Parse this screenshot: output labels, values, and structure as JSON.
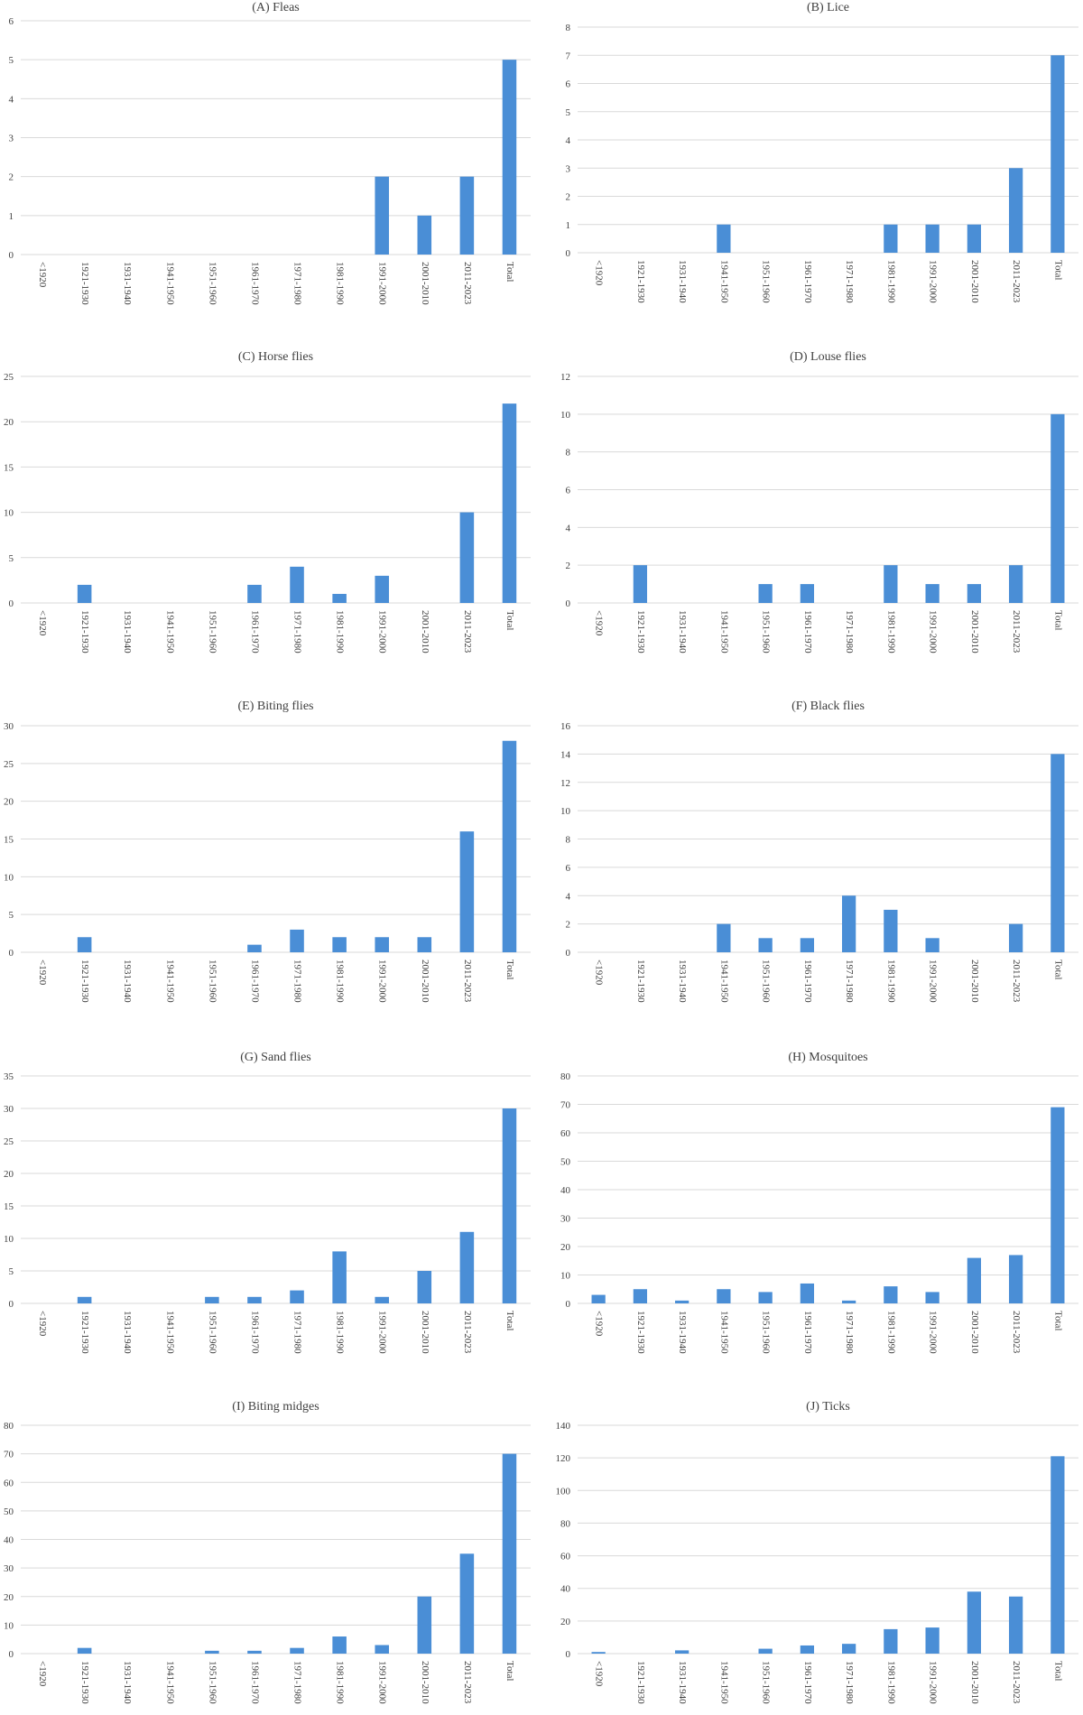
{
  "chart_data": [
    {
      "type": "bar",
      "title": "(A) Fleas",
      "categories": [
        "<1920",
        "1921-1930",
        "1931-1940",
        "1941-1950",
        "1951-1960",
        "1961-1970",
        "1971-1980",
        "1981-1990",
        "1991-2000",
        "2001-2010",
        "2011-2023",
        "Total"
      ],
      "values": [
        0,
        0,
        0,
        0,
        0,
        0,
        0,
        0,
        2,
        1,
        2,
        5
      ],
      "ylim": [
        0,
        6
      ],
      "yticks": [
        "0",
        "1",
        "2",
        "3",
        "4",
        "5",
        "6"
      ],
      "color": "#4a8ed6",
      "grid": true
    },
    {
      "type": "bar",
      "title": "(B) Lice",
      "categories": [
        "<1920",
        "1921-1930",
        "1931-1940",
        "1941-1950",
        "1951-1960",
        "1961-1970",
        "1971-1980",
        "1981-1990",
        "1991-2000",
        "2001-2010",
        "2011-2023",
        "Total"
      ],
      "values": [
        0,
        0,
        0,
        1,
        0,
        0,
        0,
        1,
        1,
        1,
        3,
        7
      ],
      "ylim": [
        0,
        8
      ],
      "yticks": [
        "0",
        "1",
        "2",
        "3",
        "4",
        "5",
        "6",
        "7",
        "8"
      ],
      "color": "#4a8ed6",
      "grid": true
    },
    {
      "type": "bar",
      "title": "(C) Horse flies",
      "categories": [
        "<1920",
        "1921-1930",
        "1931-1940",
        "1941-1950",
        "1951-1960",
        "1961-1970",
        "1971-1980",
        "1981-1990",
        "1991-2000",
        "2001-2010",
        "2011-2023",
        "Total"
      ],
      "values": [
        0,
        2,
        0,
        0,
        0,
        2,
        4,
        1,
        3,
        0,
        10,
        22
      ],
      "ylim": [
        0,
        25
      ],
      "yticks": [
        "0",
        "5",
        "10",
        "15",
        "20",
        "25"
      ],
      "color": "#4a8ed6",
      "grid": true
    },
    {
      "type": "bar",
      "title": "(D) Louse flies",
      "categories": [
        "<1920",
        "1921-1930",
        "1931-1940",
        "1941-1950",
        "1951-1960",
        "1961-1970",
        "1971-1980",
        "1981-1990",
        "1991-2000",
        "2001-2010",
        "2011-2023",
        "Total"
      ],
      "values": [
        0,
        2,
        0,
        0,
        1,
        1,
        0,
        2,
        1,
        1,
        2,
        10
      ],
      "ylim": [
        0,
        12
      ],
      "yticks": [
        "0",
        "2",
        "4",
        "6",
        "8",
        "10",
        "12"
      ],
      "color": "#4a8ed6",
      "grid": true
    },
    {
      "type": "bar",
      "title": "(E) Biting flies",
      "categories": [
        "<1920",
        "1921-1930",
        "1931-1940",
        "1941-1950",
        "1951-1960",
        "1961-1970",
        "1971-1980",
        "1981-1990",
        "1991-2000",
        "2001-2010",
        "2011-2023",
        "Total"
      ],
      "values": [
        0,
        2,
        0,
        0,
        0,
        1,
        3,
        2,
        2,
        2,
        16,
        28
      ],
      "ylim": [
        0,
        30
      ],
      "yticks": [
        "0",
        "5",
        "10",
        "15",
        "20",
        "25",
        "30"
      ],
      "color": "#4a8ed6",
      "grid": true
    },
    {
      "type": "bar",
      "title": "(F) Black flies",
      "categories": [
        "<1920",
        "1921-1930",
        "1931-1940",
        "1941-1950",
        "1951-1960",
        "1961-1970",
        "1971-1980",
        "1981-1990",
        "1991-2000",
        "2001-2010",
        "2011-2023",
        "Total"
      ],
      "values": [
        0,
        0,
        0,
        2,
        1,
        1,
        4,
        3,
        1,
        0,
        2,
        14
      ],
      "ylim": [
        0,
        16
      ],
      "yticks": [
        "0",
        "2",
        "4",
        "6",
        "8",
        "10",
        "12",
        "14",
        "16"
      ],
      "color": "#4a8ed6",
      "grid": true
    },
    {
      "type": "bar",
      "title": "(G) Sand flies",
      "categories": [
        "<1920",
        "1921-1930",
        "1931-1940",
        "1941-1950",
        "1951-1960",
        "1961-1970",
        "1971-1980",
        "1981-1990",
        "1991-2000",
        "2001-2010",
        "2011-2023",
        "Total"
      ],
      "values": [
        0,
        1,
        0,
        0,
        1,
        1,
        2,
        8,
        1,
        5,
        11,
        30
      ],
      "ylim": [
        0,
        35
      ],
      "yticks": [
        "0",
        "5",
        "10",
        "15",
        "20",
        "25",
        "30",
        "35"
      ],
      "color": "#4a8ed6",
      "grid": true
    },
    {
      "type": "bar",
      "title": "(H) Mosquitoes",
      "categories": [
        "<1920",
        "1921-1930",
        "1931-1940",
        "1941-1950",
        "1951-1960",
        "1961-1970",
        "1971-1980",
        "1981-1990",
        "1991-2000",
        "2001-2010",
        "2011-2023",
        "Total"
      ],
      "values": [
        3,
        5,
        1,
        5,
        4,
        7,
        1,
        6,
        4,
        16,
        17,
        69
      ],
      "ylim": [
        0,
        80
      ],
      "yticks": [
        "0",
        "10",
        "20",
        "30",
        "40",
        "50",
        "60",
        "70",
        "80"
      ],
      "color": "#4a8ed6",
      "grid": true
    },
    {
      "type": "bar",
      "title": "(I) Biting midges",
      "categories": [
        "<1920",
        "1921-1930",
        "1931-1940",
        "1941-1950",
        "1951-1960",
        "1961-1970",
        "1971-1980",
        "1981-1990",
        "1991-2000",
        "2001-2010",
        "2011-2023",
        "Total"
      ],
      "values": [
        0,
        2,
        0,
        0,
        1,
        1,
        2,
        6,
        3,
        20,
        35,
        70
      ],
      "ylim": [
        0,
        80
      ],
      "yticks": [
        "0",
        "10",
        "20",
        "30",
        "40",
        "50",
        "60",
        "70",
        "80"
      ],
      "color": "#4a8ed6",
      "grid": true
    },
    {
      "type": "bar",
      "title": "(J) Ticks",
      "categories": [
        "<1920",
        "1921-1930",
        "1931-1940",
        "1941-1950",
        "1951-1960",
        "1961-1970",
        "1971-1980",
        "1981-1990",
        "1991-2000",
        "2001-2010",
        "2011-2023",
        "Total"
      ],
      "values": [
        1,
        0,
        2,
        0,
        3,
        5,
        6,
        15,
        16,
        38,
        35,
        121
      ],
      "ylim": [
        0,
        140
      ],
      "yticks": [
        "0",
        "20",
        "40",
        "60",
        "80",
        "100",
        "120",
        "140"
      ],
      "color": "#4a8ed6",
      "grid": true
    }
  ]
}
